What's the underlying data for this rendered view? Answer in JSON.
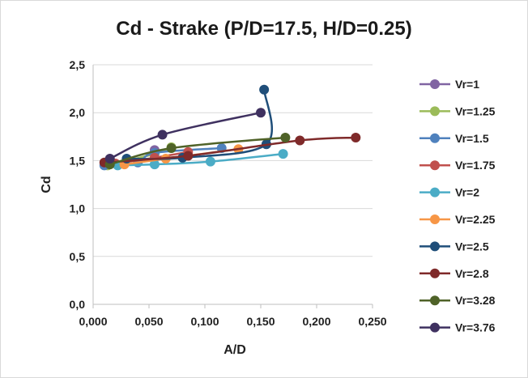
{
  "chart_data": {
    "type": "line",
    "title": "Cd - Strake (P/D=17.5, H/D=0.25)",
    "xlabel": "A/D",
    "ylabel": "Cd",
    "xlim": [
      0,
      0.25
    ],
    "ylim": [
      0,
      2.5
    ],
    "xticks": [
      "0,000",
      "0,050",
      "0,100",
      "0,150",
      "0,200",
      "0,250"
    ],
    "yticks": [
      "0,0",
      "0,5",
      "1,0",
      "1,5",
      "2,0",
      "2,5"
    ],
    "grid": "horizontal",
    "legend": "right",
    "series": [
      {
        "name": "Vr=1",
        "color": "#8064a2",
        "points": [
          [
            0.055,
            1.61
          ]
        ]
      },
      {
        "name": "Vr=1.25",
        "color": "#9bbb59",
        "points": [
          [
            0.013,
            1.45
          ],
          [
            0.055,
            1.57
          ],
          [
            0.07,
            1.64
          ]
        ]
      },
      {
        "name": "Vr=1.5",
        "color": "#4f81bd",
        "points": [
          [
            0.01,
            1.45
          ],
          [
            0.04,
            1.48
          ],
          [
            0.055,
            1.58
          ],
          [
            0.115,
            1.63
          ]
        ]
      },
      {
        "name": "Vr=1.75",
        "color": "#c0504d",
        "points": [
          [
            0.02,
            1.47
          ],
          [
            0.055,
            1.53
          ],
          [
            0.085,
            1.59
          ]
        ]
      },
      {
        "name": "Vr=2",
        "color": "#4bacc6",
        "points": [
          [
            0.022,
            1.45
          ],
          [
            0.055,
            1.46
          ],
          [
            0.105,
            1.49
          ],
          [
            0.17,
            1.57
          ]
        ]
      },
      {
        "name": "Vr=2.25",
        "color": "#f79646",
        "points": [
          [
            0.028,
            1.46
          ],
          [
            0.065,
            1.52
          ],
          [
            0.13,
            1.62
          ]
        ]
      },
      {
        "name": "Vr=2.5",
        "color": "#1f4e79",
        "points": [
          [
            0.03,
            1.52
          ],
          [
            0.08,
            1.53
          ],
          [
            0.155,
            1.67
          ],
          [
            0.153,
            2.24
          ]
        ]
      },
      {
        "name": "Vr=2.8",
        "color": "#7f2a2a",
        "points": [
          [
            0.01,
            1.48
          ],
          [
            0.085,
            1.55
          ],
          [
            0.185,
            1.71
          ],
          [
            0.235,
            1.74
          ]
        ]
      },
      {
        "name": "Vr=3.28",
        "color": "#4f6228",
        "points": [
          [
            0.015,
            1.46
          ],
          [
            0.07,
            1.63
          ],
          [
            0.172,
            1.74
          ]
        ]
      },
      {
        "name": "Vr=3.76",
        "color": "#3f3160",
        "points": [
          [
            0.015,
            1.52
          ],
          [
            0.062,
            1.77
          ],
          [
            0.15,
            2.0
          ]
        ]
      }
    ]
  }
}
